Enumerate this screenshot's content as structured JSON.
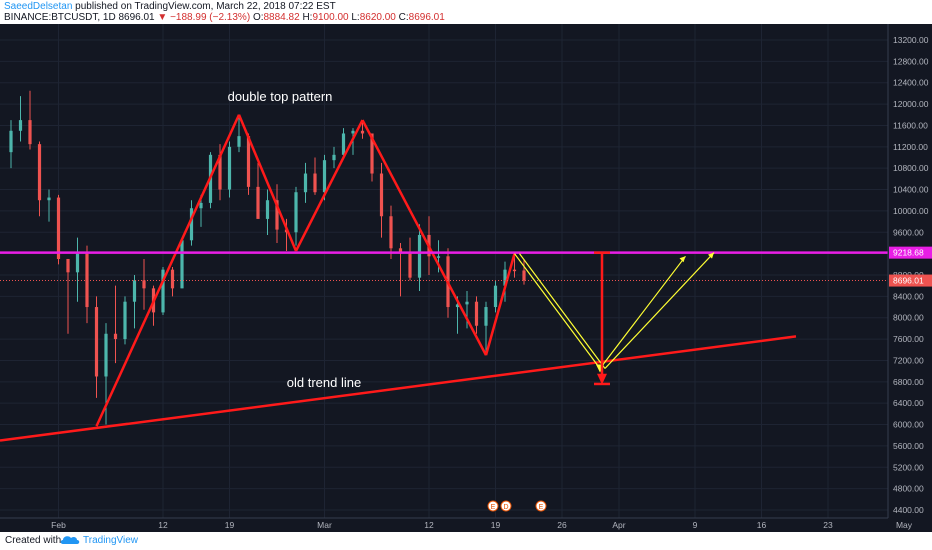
{
  "header": {
    "author": "SaeedDelsetan",
    "published_text": "published on TradingView.com, March 22, 2018 07:22 EST",
    "symbol": "BINANCE:BTCUSDT, 1D",
    "last_price": "8696.01",
    "change_arrow": "▼",
    "change": "−188.99 (−2.13%)",
    "open_label": "O:",
    "open": "8884.82",
    "high_label": "H:",
    "high": "9100.00",
    "low_label": "L:",
    "low": "8620.00",
    "close_label": "C:",
    "close": "8696.01"
  },
  "annotations": {
    "double_top": "double top pattern",
    "trend_line": "old trend line"
  },
  "price_axis": {
    "ticks": [
      "13200.00",
      "12800.00",
      "12400.00",
      "12000.00",
      "11600.00",
      "11200.00",
      "10800.00",
      "10400.00",
      "10000.00",
      "9600.00",
      "9200.00",
      "8800.00",
      "8400.00",
      "8000.00",
      "7600.00",
      "7200.00",
      "6800.00",
      "6400.00",
      "6000.00",
      "5600.00",
      "5200.00",
      "4800.00",
      "4400.00"
    ],
    "level_label": "9218.68",
    "current_label": "8696.01"
  },
  "time_axis": {
    "labels": [
      "Feb",
      "12",
      "19",
      "Mar",
      "12",
      "19",
      "26",
      "Apr",
      "9",
      "16",
      "23",
      "May"
    ]
  },
  "event_badges": [
    "E",
    "D",
    "E"
  ],
  "footer": {
    "created_with": "Created with",
    "brand": "TradingView"
  },
  "colors": {
    "background": "#131722",
    "bull": "#4db6ac",
    "bear": "#ef5350",
    "pattern_line": "#ff1a1a",
    "level_line": "#e91ee6",
    "projection": "#ffff33"
  },
  "chart_data": {
    "type": "candlestick",
    "series_symbol": "BINANCE:BTCUSDT",
    "interval": "1D",
    "ylim": [
      4200,
      13400
    ],
    "candles": [
      {
        "date": "2018-01-27",
        "open": 11100,
        "high": 11700,
        "low": 10800,
        "close": 11500
      },
      {
        "date": "2018-01-28",
        "open": 11500,
        "high": 12150,
        "low": 11300,
        "close": 11700
      },
      {
        "date": "2018-01-29",
        "open": 11700,
        "high": 12250,
        "low": 11150,
        "close": 11250
      },
      {
        "date": "2018-01-30",
        "open": 11250,
        "high": 11300,
        "low": 9900,
        "close": 10200
      },
      {
        "date": "2018-01-31",
        "open": 10200,
        "high": 10400,
        "low": 9800,
        "close": 10250
      },
      {
        "date": "2018-02-01",
        "open": 10250,
        "high": 10300,
        "low": 9000,
        "close": 9100
      },
      {
        "date": "2018-02-02",
        "open": 9100,
        "high": 9100,
        "low": 7700,
        "close": 8850
      },
      {
        "date": "2018-02-03",
        "open": 8850,
        "high": 9500,
        "low": 8300,
        "close": 9200
      },
      {
        "date": "2018-02-04",
        "open": 9200,
        "high": 9350,
        "low": 7900,
        "close": 8200
      },
      {
        "date": "2018-02-05",
        "open": 8200,
        "high": 8400,
        "low": 6500,
        "close": 6900
      },
      {
        "date": "2018-02-06",
        "open": 6900,
        "high": 7900,
        "low": 6000,
        "close": 7700
      },
      {
        "date": "2018-02-07",
        "open": 7700,
        "high": 8600,
        "low": 7150,
        "close": 7600
      },
      {
        "date": "2018-02-08",
        "open": 7600,
        "high": 8400,
        "low": 7500,
        "close": 8300
      },
      {
        "date": "2018-02-09",
        "open": 8300,
        "high": 8800,
        "low": 7800,
        "close": 8700
      },
      {
        "date": "2018-02-10",
        "open": 8700,
        "high": 9100,
        "low": 8150,
        "close": 8550
      },
      {
        "date": "2018-02-11",
        "open": 8550,
        "high": 8600,
        "low": 7850,
        "close": 8100
      },
      {
        "date": "2018-02-12",
        "open": 8100,
        "high": 8950,
        "low": 8050,
        "close": 8900
      },
      {
        "date": "2018-02-13",
        "open": 8900,
        "high": 8950,
        "low": 8400,
        "close": 8550
      },
      {
        "date": "2018-02-14",
        "open": 8550,
        "high": 9500,
        "low": 8550,
        "close": 9450
      },
      {
        "date": "2018-02-15",
        "open": 9450,
        "high": 10200,
        "low": 9350,
        "close": 10050
      },
      {
        "date": "2018-02-16",
        "open": 10050,
        "high": 10300,
        "low": 9700,
        "close": 10150
      },
      {
        "date": "2018-02-17",
        "open": 10150,
        "high": 11100,
        "low": 10050,
        "close": 11050
      },
      {
        "date": "2018-02-18",
        "open": 11050,
        "high": 11250,
        "low": 10200,
        "close": 10400
      },
      {
        "date": "2018-02-19",
        "open": 10400,
        "high": 11300,
        "low": 10250,
        "close": 11200
      },
      {
        "date": "2018-02-20",
        "open": 11200,
        "high": 11800,
        "low": 11100,
        "close": 11400
      },
      {
        "date": "2018-02-21",
        "open": 11400,
        "high": 11450,
        "low": 10300,
        "close": 10450
      },
      {
        "date": "2018-02-22",
        "open": 10450,
        "high": 10900,
        "low": 9900,
        "close": 9850
      },
      {
        "date": "2018-02-23",
        "open": 9850,
        "high": 10400,
        "low": 9550,
        "close": 10200
      },
      {
        "date": "2018-02-24",
        "open": 10200,
        "high": 10500,
        "low": 9400,
        "close": 9650
      },
      {
        "date": "2018-02-25",
        "open": 9650,
        "high": 9850,
        "low": 9250,
        "close": 9600
      },
      {
        "date": "2018-02-26",
        "open": 9600,
        "high": 10450,
        "low": 9350,
        "close": 10350
      },
      {
        "date": "2018-02-27",
        "open": 10350,
        "high": 10900,
        "low": 10150,
        "close": 10700
      },
      {
        "date": "2018-02-28",
        "open": 10700,
        "high": 11000,
        "low": 10300,
        "close": 10350
      },
      {
        "date": "2018-03-01",
        "open": 10350,
        "high": 11050,
        "low": 10200,
        "close": 10950
      },
      {
        "date": "2018-03-02",
        "open": 10950,
        "high": 11200,
        "low": 10800,
        "close": 11050
      },
      {
        "date": "2018-03-03",
        "open": 11050,
        "high": 11550,
        "low": 11000,
        "close": 11450
      },
      {
        "date": "2018-03-04",
        "open": 11450,
        "high": 11550,
        "low": 11050,
        "close": 11500
      },
      {
        "date": "2018-03-05",
        "open": 11500,
        "high": 11700,
        "low": 11350,
        "close": 11450
      },
      {
        "date": "2018-03-06",
        "open": 11450,
        "high": 11450,
        "low": 10550,
        "close": 10700
      },
      {
        "date": "2018-03-07",
        "open": 10700,
        "high": 10900,
        "low": 9500,
        "close": 9900
      },
      {
        "date": "2018-03-08",
        "open": 9900,
        "high": 10100,
        "low": 9100,
        "close": 9300
      },
      {
        "date": "2018-03-09",
        "open": 9300,
        "high": 9400,
        "low": 8400,
        "close": 9200
      },
      {
        "date": "2018-03-10",
        "open": 9200,
        "high": 9500,
        "low": 8700,
        "close": 8750
      },
      {
        "date": "2018-03-11",
        "open": 8750,
        "high": 9750,
        "low": 8500,
        "close": 9550
      },
      {
        "date": "2018-03-12",
        "open": 9550,
        "high": 9900,
        "low": 8800,
        "close": 9150
      },
      {
        "date": "2018-03-13",
        "open": 9150,
        "high": 9450,
        "low": 8850,
        "close": 9150
      },
      {
        "date": "2018-03-14",
        "open": 9150,
        "high": 9300,
        "low": 8000,
        "close": 8200
      },
      {
        "date": "2018-03-15",
        "open": 8200,
        "high": 8400,
        "low": 7700,
        "close": 8250
      },
      {
        "date": "2018-03-16",
        "open": 8250,
        "high": 8500,
        "low": 7800,
        "close": 8300
      },
      {
        "date": "2018-03-17",
        "open": 8300,
        "high": 8400,
        "low": 7700,
        "close": 7850
      },
      {
        "date": "2018-03-18",
        "open": 7850,
        "high": 8300,
        "low": 7300,
        "close": 8200
      },
      {
        "date": "2018-03-19",
        "open": 8200,
        "high": 8700,
        "low": 8100,
        "close": 8600
      },
      {
        "date": "2018-03-20",
        "open": 8600,
        "high": 9050,
        "low": 8300,
        "close": 8900
      },
      {
        "date": "2018-03-21",
        "open": 8900,
        "high": 9150,
        "low": 8750,
        "close": 8885
      },
      {
        "date": "2018-03-22",
        "open": 8884.82,
        "high": 9100,
        "low": 8620,
        "close": 8696.01
      }
    ],
    "horizontal_level": 9218.68
  }
}
